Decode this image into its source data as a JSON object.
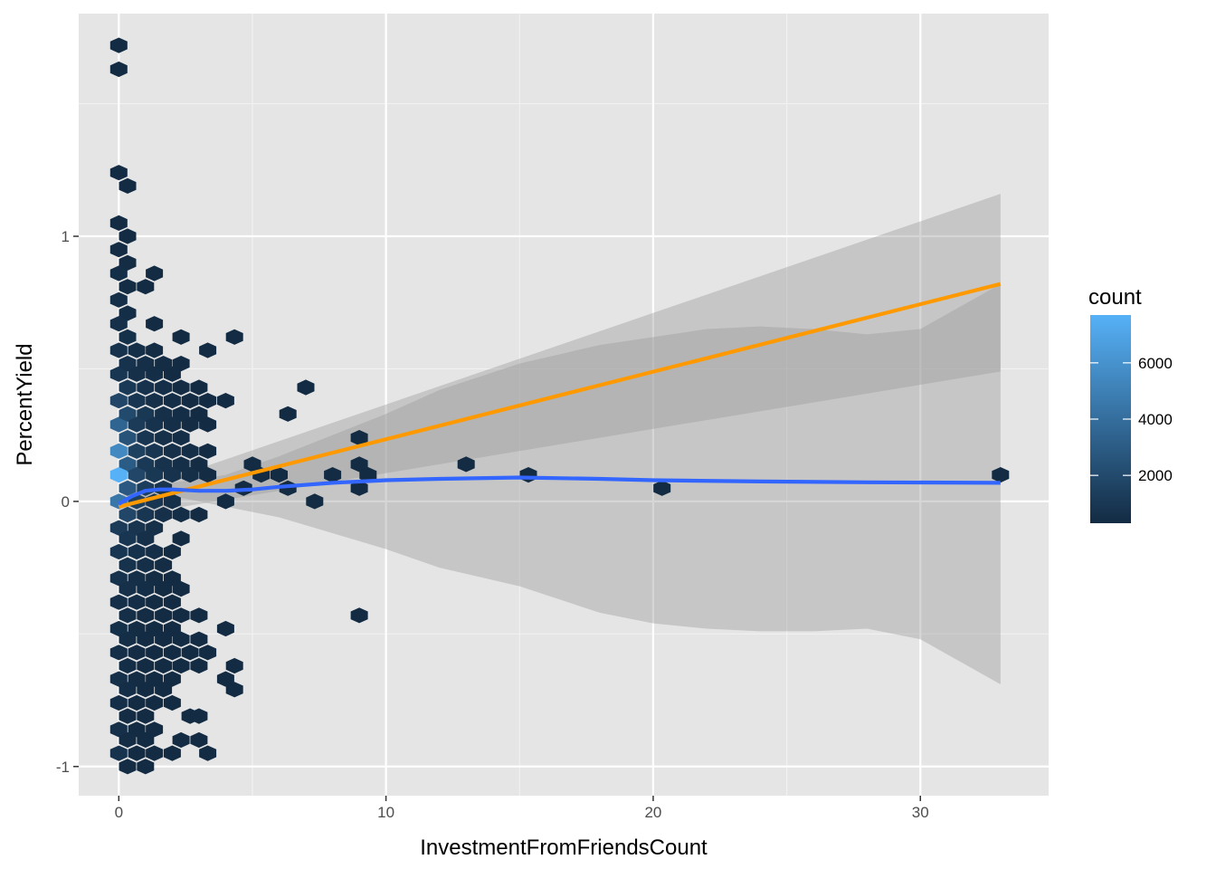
{
  "chart_data": {
    "type": "hexbin",
    "xlabel": "InvestmentFromFriendsCount",
    "ylabel": "PercentYield",
    "xlim": [
      -1.5,
      34.8
    ],
    "ylim": [
      -1.11,
      1.84
    ],
    "x_ticks": [
      0,
      10,
      20,
      30
    ],
    "x_tick_labels": [
      "0",
      "10",
      "20",
      "30"
    ],
    "y_ticks": [
      -1,
      0,
      1
    ],
    "y_tick_labels": [
      "-1",
      "0",
      "1"
    ],
    "x_minor": [
      5,
      15,
      25
    ],
    "y_minor": [
      -0.5,
      0.5,
      1.5
    ],
    "grid": true,
    "legend": {
      "title": "count",
      "position": "right",
      "type": "colorbar",
      "min": 300,
      "max": 7700,
      "ticks": [
        2000,
        4000,
        6000
      ],
      "tick_labels": [
        "2000",
        "4000",
        "6000"
      ],
      "color_low": "#132b43",
      "color_high": "#56b1f7"
    },
    "hexbins": [
      {
        "x": 0,
        "y": 1.72,
        "count": 300
      },
      {
        "x": 0,
        "y": 1.63,
        "count": 300
      },
      {
        "x": 0,
        "y": 1.24,
        "count": 300
      },
      {
        "x": 0.33,
        "y": 1.19,
        "count": 300
      },
      {
        "x": 0,
        "y": 1.05,
        "count": 350
      },
      {
        "x": 0.33,
        "y": 1.0,
        "count": 350
      },
      {
        "x": 0,
        "y": 0.95,
        "count": 400
      },
      {
        "x": 0.33,
        "y": 0.9,
        "count": 400
      },
      {
        "x": 0,
        "y": 0.86,
        "count": 450
      },
      {
        "x": 0.33,
        "y": 0.81,
        "count": 400
      },
      {
        "x": 1,
        "y": 0.81,
        "count": 300
      },
      {
        "x": 1.33,
        "y": 0.86,
        "count": 300
      },
      {
        "x": 0,
        "y": 0.76,
        "count": 500
      },
      {
        "x": 0.33,
        "y": 0.71,
        "count": 450
      },
      {
        "x": 0,
        "y": 0.67,
        "count": 600
      },
      {
        "x": 0.33,
        "y": 0.62,
        "count": 550
      },
      {
        "x": 1.33,
        "y": 0.67,
        "count": 300
      },
      {
        "x": 2.33,
        "y": 0.62,
        "count": 300
      },
      {
        "x": 3.33,
        "y": 0.57,
        "count": 300
      },
      {
        "x": 4.33,
        "y": 0.62,
        "count": 300
      },
      {
        "x": 0,
        "y": 0.57,
        "count": 700
      },
      {
        "x": 0.67,
        "y": 0.57,
        "count": 500
      },
      {
        "x": 1.33,
        "y": 0.57,
        "count": 400
      },
      {
        "x": 0,
        "y": 0.48,
        "count": 900
      },
      {
        "x": 0.33,
        "y": 0.52,
        "count": 700
      },
      {
        "x": 1,
        "y": 0.52,
        "count": 500
      },
      {
        "x": 1.67,
        "y": 0.52,
        "count": 400
      },
      {
        "x": 2.33,
        "y": 0.52,
        "count": 300
      },
      {
        "x": 0.67,
        "y": 0.48,
        "count": 600
      },
      {
        "x": 1.33,
        "y": 0.48,
        "count": 450
      },
      {
        "x": 2,
        "y": 0.48,
        "count": 350
      },
      {
        "x": 0,
        "y": 0.38,
        "count": 1800
      },
      {
        "x": 0.33,
        "y": 0.43,
        "count": 1100
      },
      {
        "x": 1,
        "y": 0.43,
        "count": 700
      },
      {
        "x": 1.67,
        "y": 0.43,
        "count": 500
      },
      {
        "x": 2.33,
        "y": 0.43,
        "count": 400
      },
      {
        "x": 3,
        "y": 0.43,
        "count": 350
      },
      {
        "x": 0.67,
        "y": 0.38,
        "count": 900
      },
      {
        "x": 1.33,
        "y": 0.38,
        "count": 600
      },
      {
        "x": 2,
        "y": 0.38,
        "count": 450
      },
      {
        "x": 2.67,
        "y": 0.38,
        "count": 350
      },
      {
        "x": 3.33,
        "y": 0.38,
        "count": 300
      },
      {
        "x": 4,
        "y": 0.38,
        "count": 300
      },
      {
        "x": 0,
        "y": 0.29,
        "count": 3500
      },
      {
        "x": 0.33,
        "y": 0.33,
        "count": 2000
      },
      {
        "x": 1,
        "y": 0.33,
        "count": 1000
      },
      {
        "x": 1.67,
        "y": 0.33,
        "count": 600
      },
      {
        "x": 2.33,
        "y": 0.33,
        "count": 450
      },
      {
        "x": 3,
        "y": 0.33,
        "count": 350
      },
      {
        "x": 0.33,
        "y": 0.24,
        "count": 2500
      },
      {
        "x": 0.67,
        "y": 0.29,
        "count": 1200
      },
      {
        "x": 1.33,
        "y": 0.29,
        "count": 700
      },
      {
        "x": 2,
        "y": 0.29,
        "count": 500
      },
      {
        "x": 2.67,
        "y": 0.29,
        "count": 400
      },
      {
        "x": 3.33,
        "y": 0.29,
        "count": 350
      },
      {
        "x": 1,
        "y": 0.24,
        "count": 900
      },
      {
        "x": 1.67,
        "y": 0.24,
        "count": 600
      },
      {
        "x": 2.33,
        "y": 0.24,
        "count": 450
      },
      {
        "x": 0,
        "y": 0.19,
        "count": 5500
      },
      {
        "x": 0.67,
        "y": 0.19,
        "count": 1500
      },
      {
        "x": 1.33,
        "y": 0.19,
        "count": 900
      },
      {
        "x": 2,
        "y": 0.19,
        "count": 600
      },
      {
        "x": 2.67,
        "y": 0.19,
        "count": 450
      },
      {
        "x": 3.33,
        "y": 0.19,
        "count": 350
      },
      {
        "x": 0.33,
        "y": 0.14,
        "count": 3000
      },
      {
        "x": 1,
        "y": 0.14,
        "count": 1100
      },
      {
        "x": 1.67,
        "y": 0.14,
        "count": 700
      },
      {
        "x": 2.33,
        "y": 0.14,
        "count": 500
      },
      {
        "x": 3,
        "y": 0.14,
        "count": 400
      },
      {
        "x": 0,
        "y": 0.1,
        "count": 7700
      },
      {
        "x": 0.67,
        "y": 0.1,
        "count": 1800
      },
      {
        "x": 1.33,
        "y": 0.1,
        "count": 1000
      },
      {
        "x": 2,
        "y": 0.1,
        "count": 700
      },
      {
        "x": 2.67,
        "y": 0.1,
        "count": 500
      },
      {
        "x": 3.33,
        "y": 0.1,
        "count": 400
      },
      {
        "x": 0.33,
        "y": 0.05,
        "count": 2800
      },
      {
        "x": 1,
        "y": 0.05,
        "count": 1300
      },
      {
        "x": 1.67,
        "y": 0.05,
        "count": 800
      },
      {
        "x": 0,
        "y": 0.0,
        "count": 4500
      },
      {
        "x": 0.67,
        "y": 0.0,
        "count": 1500
      },
      {
        "x": 1.33,
        "y": 0.0,
        "count": 900
      },
      {
        "x": 2,
        "y": 0.0,
        "count": 600
      },
      {
        "x": 0.33,
        "y": -0.05,
        "count": 1800
      },
      {
        "x": 1,
        "y": -0.05,
        "count": 900
      },
      {
        "x": 1.67,
        "y": -0.05,
        "count": 600
      },
      {
        "x": 2.33,
        "y": -0.05,
        "count": 450
      },
      {
        "x": 3,
        "y": -0.05,
        "count": 350
      },
      {
        "x": 0,
        "y": -0.1,
        "count": 1200
      },
      {
        "x": 0.67,
        "y": -0.1,
        "count": 800
      },
      {
        "x": 1.33,
        "y": -0.1,
        "count": 600
      },
      {
        "x": 0.33,
        "y": -0.14,
        "count": 900
      },
      {
        "x": 1,
        "y": -0.14,
        "count": 600
      },
      {
        "x": 2.33,
        "y": -0.14,
        "count": 350
      },
      {
        "x": 0,
        "y": -0.19,
        "count": 900
      },
      {
        "x": 0.67,
        "y": -0.19,
        "count": 650
      },
      {
        "x": 1.33,
        "y": -0.19,
        "count": 500
      },
      {
        "x": 2,
        "y": -0.19,
        "count": 350
      },
      {
        "x": 0.33,
        "y": -0.24,
        "count": 700
      },
      {
        "x": 1,
        "y": -0.24,
        "count": 500
      },
      {
        "x": 1.67,
        "y": -0.24,
        "count": 400
      },
      {
        "x": 0,
        "y": -0.29,
        "count": 700
      },
      {
        "x": 0.67,
        "y": -0.29,
        "count": 500
      },
      {
        "x": 1.33,
        "y": -0.29,
        "count": 400
      },
      {
        "x": 2,
        "y": -0.29,
        "count": 350
      },
      {
        "x": 0.33,
        "y": -0.33,
        "count": 600
      },
      {
        "x": 1,
        "y": -0.33,
        "count": 450
      },
      {
        "x": 1.67,
        "y": -0.33,
        "count": 350
      },
      {
        "x": 2.33,
        "y": -0.33,
        "count": 300
      },
      {
        "x": 0,
        "y": -0.38,
        "count": 600
      },
      {
        "x": 0.67,
        "y": -0.38,
        "count": 450
      },
      {
        "x": 1.33,
        "y": -0.38,
        "count": 350
      },
      {
        "x": 2,
        "y": -0.38,
        "count": 300
      },
      {
        "x": 0.33,
        "y": -0.43,
        "count": 500
      },
      {
        "x": 1,
        "y": -0.43,
        "count": 400
      },
      {
        "x": 1.67,
        "y": -0.43,
        "count": 350
      },
      {
        "x": 2.33,
        "y": -0.43,
        "count": 300
      },
      {
        "x": 3,
        "y": -0.43,
        "count": 300
      },
      {
        "x": 0,
        "y": -0.48,
        "count": 550
      },
      {
        "x": 0.67,
        "y": -0.48,
        "count": 400
      },
      {
        "x": 1.33,
        "y": -0.48,
        "count": 350
      },
      {
        "x": 2,
        "y": -0.48,
        "count": 300
      },
      {
        "x": 4,
        "y": -0.48,
        "count": 300
      },
      {
        "x": 0.33,
        "y": -0.52,
        "count": 450
      },
      {
        "x": 1,
        "y": -0.52,
        "count": 350
      },
      {
        "x": 1.67,
        "y": -0.52,
        "count": 300
      },
      {
        "x": 2.33,
        "y": -0.52,
        "count": 300
      },
      {
        "x": 3,
        "y": -0.52,
        "count": 300
      },
      {
        "x": 0,
        "y": -0.57,
        "count": 500
      },
      {
        "x": 0.67,
        "y": -0.57,
        "count": 400
      },
      {
        "x": 1.33,
        "y": -0.57,
        "count": 350
      },
      {
        "x": 2,
        "y": -0.57,
        "count": 300
      },
      {
        "x": 2.67,
        "y": -0.57,
        "count": 300
      },
      {
        "x": 3.33,
        "y": -0.57,
        "count": 300
      },
      {
        "x": 0.33,
        "y": -0.62,
        "count": 450
      },
      {
        "x": 1,
        "y": -0.62,
        "count": 350
      },
      {
        "x": 1.67,
        "y": -0.62,
        "count": 300
      },
      {
        "x": 2.33,
        "y": -0.62,
        "count": 300
      },
      {
        "x": 3,
        "y": -0.62,
        "count": 300
      },
      {
        "x": 4.33,
        "y": -0.62,
        "count": 300
      },
      {
        "x": 0,
        "y": -0.67,
        "count": 600
      },
      {
        "x": 0.67,
        "y": -0.67,
        "count": 400
      },
      {
        "x": 1.33,
        "y": -0.67,
        "count": 350
      },
      {
        "x": 2,
        "y": -0.67,
        "count": 300
      },
      {
        "x": 4,
        "y": -0.67,
        "count": 300
      },
      {
        "x": 0.33,
        "y": -0.71,
        "count": 450
      },
      {
        "x": 1,
        "y": -0.71,
        "count": 350
      },
      {
        "x": 1.67,
        "y": -0.71,
        "count": 300
      },
      {
        "x": 4.33,
        "y": -0.71,
        "count": 300
      },
      {
        "x": 0,
        "y": -0.76,
        "count": 500
      },
      {
        "x": 0.67,
        "y": -0.76,
        "count": 350
      },
      {
        "x": 1.33,
        "y": -0.76,
        "count": 300
      },
      {
        "x": 2,
        "y": -0.76,
        "count": 300
      },
      {
        "x": 0.33,
        "y": -0.81,
        "count": 400
      },
      {
        "x": 1,
        "y": -0.81,
        "count": 300
      },
      {
        "x": 2.67,
        "y": -0.81,
        "count": 300
      },
      {
        "x": 3,
        "y": -0.81,
        "count": 300
      },
      {
        "x": 0,
        "y": -0.86,
        "count": 600
      },
      {
        "x": 0.67,
        "y": -0.86,
        "count": 350
      },
      {
        "x": 1.33,
        "y": -0.86,
        "count": 300
      },
      {
        "x": 0.33,
        "y": -0.9,
        "count": 400
      },
      {
        "x": 1,
        "y": -0.9,
        "count": 300
      },
      {
        "x": 2.33,
        "y": -0.9,
        "count": 300
      },
      {
        "x": 3,
        "y": -0.9,
        "count": 300
      },
      {
        "x": 0,
        "y": -0.95,
        "count": 700
      },
      {
        "x": 0.67,
        "y": -0.95,
        "count": 350
      },
      {
        "x": 1.33,
        "y": -0.95,
        "count": 300
      },
      {
        "x": 2,
        "y": -0.95,
        "count": 300
      },
      {
        "x": 3.33,
        "y": -0.95,
        "count": 300
      },
      {
        "x": 0.33,
        "y": -1.0,
        "count": 400
      },
      {
        "x": 1,
        "y": -1.0,
        "count": 300
      },
      {
        "x": 4,
        "y": 0.0,
        "count": 300
      },
      {
        "x": 4.67,
        "y": 0.05,
        "count": 300
      },
      {
        "x": 5,
        "y": 0.14,
        "count": 300
      },
      {
        "x": 5.33,
        "y": 0.1,
        "count": 300
      },
      {
        "x": 6,
        "y": 0.1,
        "count": 300
      },
      {
        "x": 6.33,
        "y": 0.05,
        "count": 300
      },
      {
        "x": 6.33,
        "y": 0.33,
        "count": 300
      },
      {
        "x": 7,
        "y": 0.43,
        "count": 300
      },
      {
        "x": 7.33,
        "y": 0.0,
        "count": 300
      },
      {
        "x": 8,
        "y": 0.1,
        "count": 300
      },
      {
        "x": 9,
        "y": 0.24,
        "count": 300
      },
      {
        "x": 9,
        "y": 0.14,
        "count": 300
      },
      {
        "x": 9,
        "y": 0.05,
        "count": 300
      },
      {
        "x": 9.33,
        "y": 0.1,
        "count": 300
      },
      {
        "x": 9,
        "y": -0.43,
        "count": 300
      },
      {
        "x": 13,
        "y": 0.14,
        "count": 300
      },
      {
        "x": 15.33,
        "y": 0.1,
        "count": 300
      },
      {
        "x": 20.33,
        "y": 0.05,
        "count": 300
      },
      {
        "x": 33,
        "y": 0.1,
        "count": 300
      }
    ],
    "series": [
      {
        "type": "linear",
        "color": "#ff9900",
        "x": [
          0,
          33
        ],
        "y": [
          -0.02,
          0.82
        ],
        "ci_upper": [
          [
            0,
            0.02
          ],
          [
            33,
            1.16
          ]
        ],
        "ci_lower": [
          [
            0,
            -0.06
          ],
          [
            33,
            0.49
          ]
        ]
      },
      {
        "type": "loess",
        "color": "#3366ff",
        "x": [
          0,
          0.5,
          1,
          1.5,
          2,
          3,
          4,
          5,
          6,
          8,
          10,
          12,
          15,
          18,
          20,
          24,
          28,
          33
        ],
        "y": [
          -0.01,
          0.02,
          0.04,
          0.045,
          0.045,
          0.04,
          0.04,
          0.045,
          0.055,
          0.07,
          0.08,
          0.085,
          0.09,
          0.085,
          0.08,
          0.075,
          0.072,
          0.07
        ],
        "ci_upper": [
          [
            0,
            0.0
          ],
          [
            2,
            0.07
          ],
          [
            4,
            0.1
          ],
          [
            6,
            0.17
          ],
          [
            8,
            0.25
          ],
          [
            10,
            0.33
          ],
          [
            12,
            0.42
          ],
          [
            15,
            0.52
          ],
          [
            18,
            0.59
          ],
          [
            20,
            0.62
          ],
          [
            22,
            0.65
          ],
          [
            24,
            0.66
          ],
          [
            26,
            0.65
          ],
          [
            28,
            0.63
          ],
          [
            30,
            0.65
          ],
          [
            33,
            0.82
          ]
        ],
        "ci_lower": [
          [
            0,
            -0.02
          ],
          [
            2,
            0.02
          ],
          [
            4,
            -0.02
          ],
          [
            6,
            -0.06
          ],
          [
            8,
            -0.12
          ],
          [
            10,
            -0.18
          ],
          [
            12,
            -0.25
          ],
          [
            15,
            -0.32
          ],
          [
            18,
            -0.42
          ],
          [
            20,
            -0.46
          ],
          [
            22,
            -0.48
          ],
          [
            24,
            -0.49
          ],
          [
            26,
            -0.49
          ],
          [
            28,
            -0.48
          ],
          [
            30,
            -0.52
          ],
          [
            33,
            -0.69
          ]
        ]
      }
    ]
  }
}
